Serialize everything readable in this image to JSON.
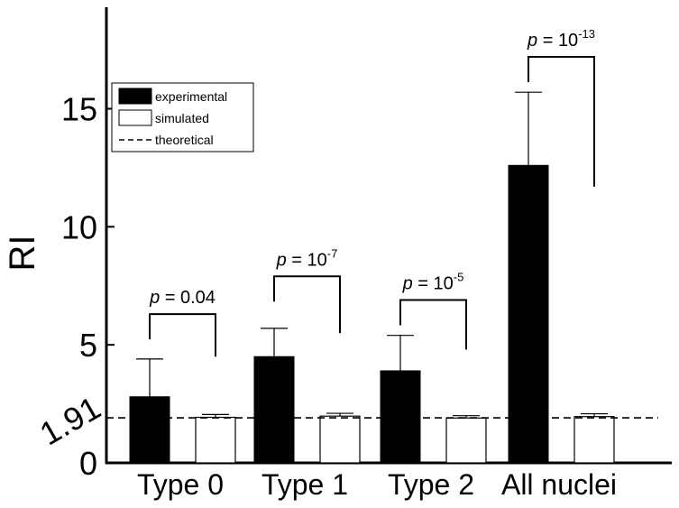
{
  "chart_data": {
    "type": "bar",
    "categories": [
      "Type 0",
      "Type 1",
      "Type 2",
      "All nuclei"
    ],
    "series": [
      {
        "name": "experimental",
        "color": "#000000",
        "values": [
          2.8,
          4.5,
          3.9,
          12.6
        ],
        "errors": [
          1.6,
          1.2,
          1.5,
          3.1
        ]
      },
      {
        "name": "simulated",
        "color": "#ffffff",
        "values": [
          1.93,
          1.98,
          1.9,
          1.96
        ],
        "errors": [
          0.12,
          0.12,
          0.1,
          0.12
        ]
      }
    ],
    "reference_line": {
      "name": "theoretical",
      "value": 1.91,
      "label": "1.91",
      "style": "dashed"
    },
    "ylabel": "RI",
    "xlabel": "",
    "ylim": [
      0,
      19.3
    ],
    "yticks": [
      "0",
      "5",
      "10",
      "15"
    ],
    "ytick_values": [
      0,
      5,
      10,
      15
    ],
    "legend": {
      "position": "top-left",
      "entries": [
        "experimental",
        "simulated",
        "theoretical"
      ]
    },
    "annotations": [
      {
        "prefix": "p",
        "text": " = 0.04",
        "base": "",
        "exp": "",
        "category": 0,
        "left_value": 6.3,
        "right_value": 4.5,
        "top_value": 6.3
      },
      {
        "prefix": "p",
        "text": " = ",
        "base": "10",
        "exp": "-7",
        "category": 1,
        "left_value": 7.9,
        "right_value": 5.5,
        "top_value": 7.9
      },
      {
        "prefix": "p",
        "text": " = ",
        "base": "10",
        "exp": "-5",
        "category": 2,
        "left_value": 6.9,
        "right_value": 4.8,
        "top_value": 6.9
      },
      {
        "prefix": "p",
        "text": " = ",
        "base": "10",
        "exp": "-13",
        "category": 3,
        "left_value": 17.2,
        "right_value": 11.7,
        "top_value": 17.2
      }
    ]
  }
}
